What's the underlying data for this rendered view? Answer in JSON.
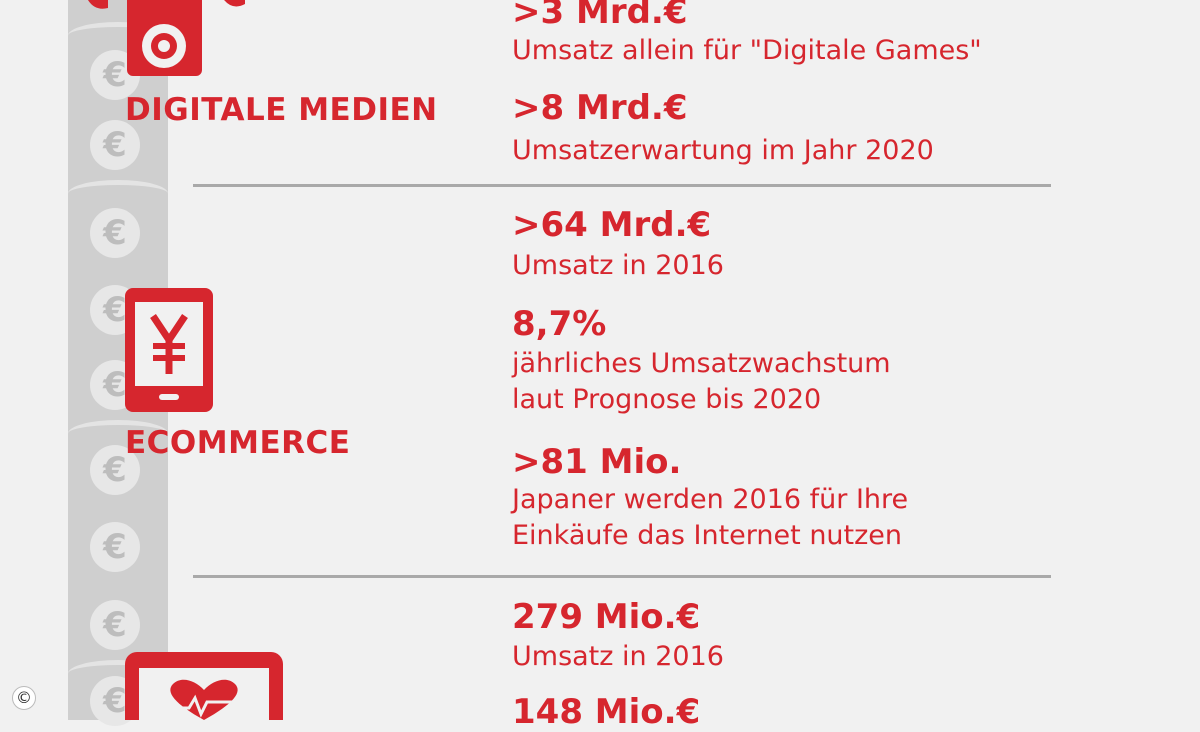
{
  "sections": [
    {
      "label": "DIGITALE MEDIEN",
      "icon": "media-player-icon",
      "stats": [
        {
          "value": ">3 Mrd.€",
          "desc": "Umsatz allein für \"Digitale Games\""
        },
        {
          "value": ">8 Mrd.€",
          "desc": "Umsatzerwartung im Jahr 2020"
        }
      ]
    },
    {
      "label": "ECOMMERCE",
      "icon": "smartphone-yen-icon",
      "stats": [
        {
          "value": ">64 Mrd.€",
          "desc": "Umsatz in 2016"
        },
        {
          "value": "8,7%",
          "desc": "jährliches Umsatzwachstum\nlaut Prognose bis 2020"
        },
        {
          "value": ">81 Mio.",
          "desc": "Japaner werden 2016 für Ihre\nEinkäufe das Internet nutzen"
        }
      ]
    },
    {
      "label": "",
      "icon": "tablet-heart-icon",
      "stats": [
        {
          "value": "279 Mio.€",
          "desc": "Umsatz in 2016"
        },
        {
          "value": "148 Mio.€",
          "desc": ""
        }
      ]
    }
  ],
  "decor": {
    "coin_symbol": "€",
    "copyright_symbol": "©"
  },
  "colors": {
    "accent": "#d6262e",
    "background": "#f1f1f1",
    "divider": "#a9a9a9",
    "strip": "#cfcfcf"
  }
}
